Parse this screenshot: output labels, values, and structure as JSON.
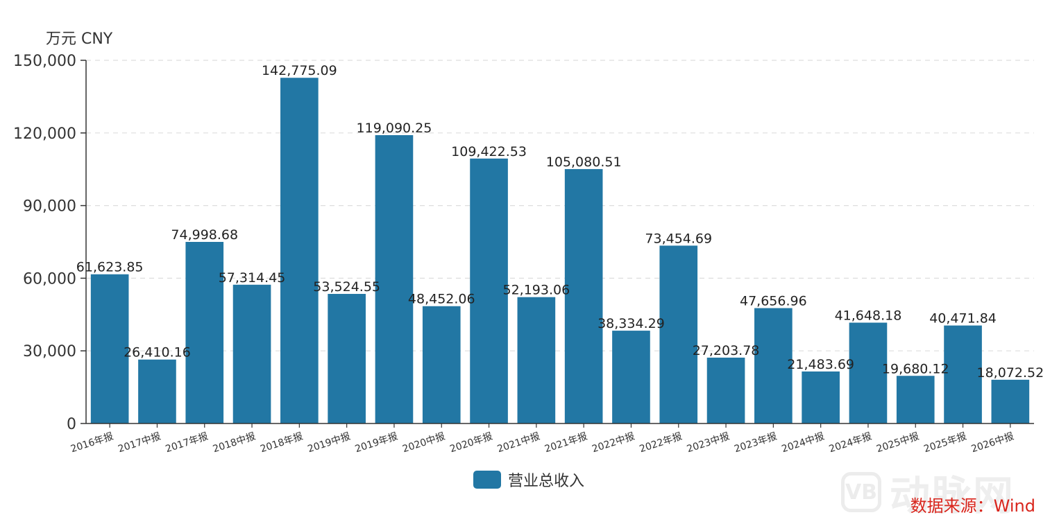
{
  "colors": {
    "bar": "#2277a4",
    "axis": "#333333",
    "grid": "#dddddd",
    "source": "#d9251c"
  },
  "unit_label": "万元  CNY",
  "legend_label": "营业总收入",
  "source_label": "数据来源：Wind",
  "watermark": {
    "badge": "VB",
    "text": "动脉网"
  },
  "chart_data": {
    "type": "bar",
    "categories": [
      "2016年报",
      "2017中报",
      "2017年报",
      "2018中报",
      "2018年报",
      "2019中报",
      "2019年报",
      "2020中报",
      "2020年报",
      "2021中报",
      "2021年报",
      "2022中报",
      "2022年报",
      "2023中报",
      "2023年报",
      "2024中报",
      "2024年报",
      "2025中报",
      "2025年报",
      "2026中报"
    ],
    "series": [
      {
        "name": "营业总收入",
        "values": [
          61623.85,
          26410.16,
          74998.68,
          57314.45,
          142775.09,
          53524.55,
          119090.25,
          48452.06,
          109422.53,
          52193.06,
          105080.51,
          38334.29,
          73454.69,
          27203.78,
          47656.96,
          21483.69,
          41648.18,
          19680.12,
          40471.84,
          18072.52
        ],
        "labels": [
          "61,623.85",
          "26,410.16",
          "74,998.68",
          "57,314.45",
          "142,775.09",
          "53,524.55",
          "119,090.25",
          "48,452.06",
          "109,422.53",
          "52,193.06",
          "105,080.51",
          "38,334.29",
          "73,454.69",
          "27,203.78",
          "47,656.96",
          "21,483.69",
          "41,648.18",
          "19,680.12",
          "40,471.84",
          "18,072.52"
        ]
      }
    ],
    "ylim": [
      0,
      150000
    ],
    "yticks": [
      0,
      30000,
      60000,
      90000,
      120000,
      150000
    ],
    "ytick_labels": [
      "0",
      "30,000",
      "60,000",
      "90,000",
      "120,000",
      "150,000"
    ],
    "grid": true,
    "legend": "bottom-center"
  }
}
